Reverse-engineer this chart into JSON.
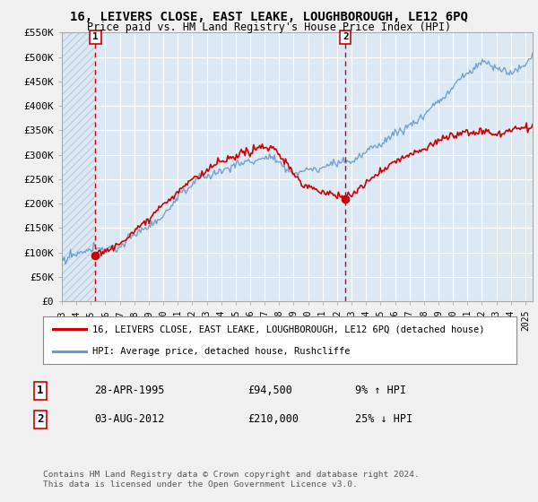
{
  "title": "16, LEIVERS CLOSE, EAST LEAKE, LOUGHBOROUGH, LE12 6PQ",
  "subtitle": "Price paid vs. HM Land Registry's House Price Index (HPI)",
  "legend_line1": "16, LEIVERS CLOSE, EAST LEAKE, LOUGHBOROUGH, LE12 6PQ (detached house)",
  "legend_line2": "HPI: Average price, detached house, Rushcliffe",
  "sale1_label": "1",
  "sale1_date": "28-APR-1995",
  "sale1_price": "£94,500",
  "sale1_hpi": "9% ↑ HPI",
  "sale2_label": "2",
  "sale2_date": "03-AUG-2012",
  "sale2_price": "£210,000",
  "sale2_hpi": "25% ↓ HPI",
  "copyright": "Contains HM Land Registry data © Crown copyright and database right 2024.\nThis data is licensed under the Open Government Licence v3.0.",
  "ylim": [
    0,
    550000
  ],
  "yticks": [
    0,
    50000,
    100000,
    150000,
    200000,
    250000,
    300000,
    350000,
    400000,
    450000,
    500000,
    550000
  ],
  "sale_color": "#cc0000",
  "hpi_color": "#6699cc",
  "vline_color": "#cc0000",
  "plot_bg_color": "#dce9f5",
  "hatch_color": "#c0d0e0",
  "grid_color": "#ffffff",
  "background_color": "#f0f0f0",
  "sale1_x": 1995.32,
  "sale1_y": 94500,
  "sale2_x": 2012.58,
  "sale2_y": 210000,
  "xmin": 1993.0,
  "xmax": 2025.5
}
